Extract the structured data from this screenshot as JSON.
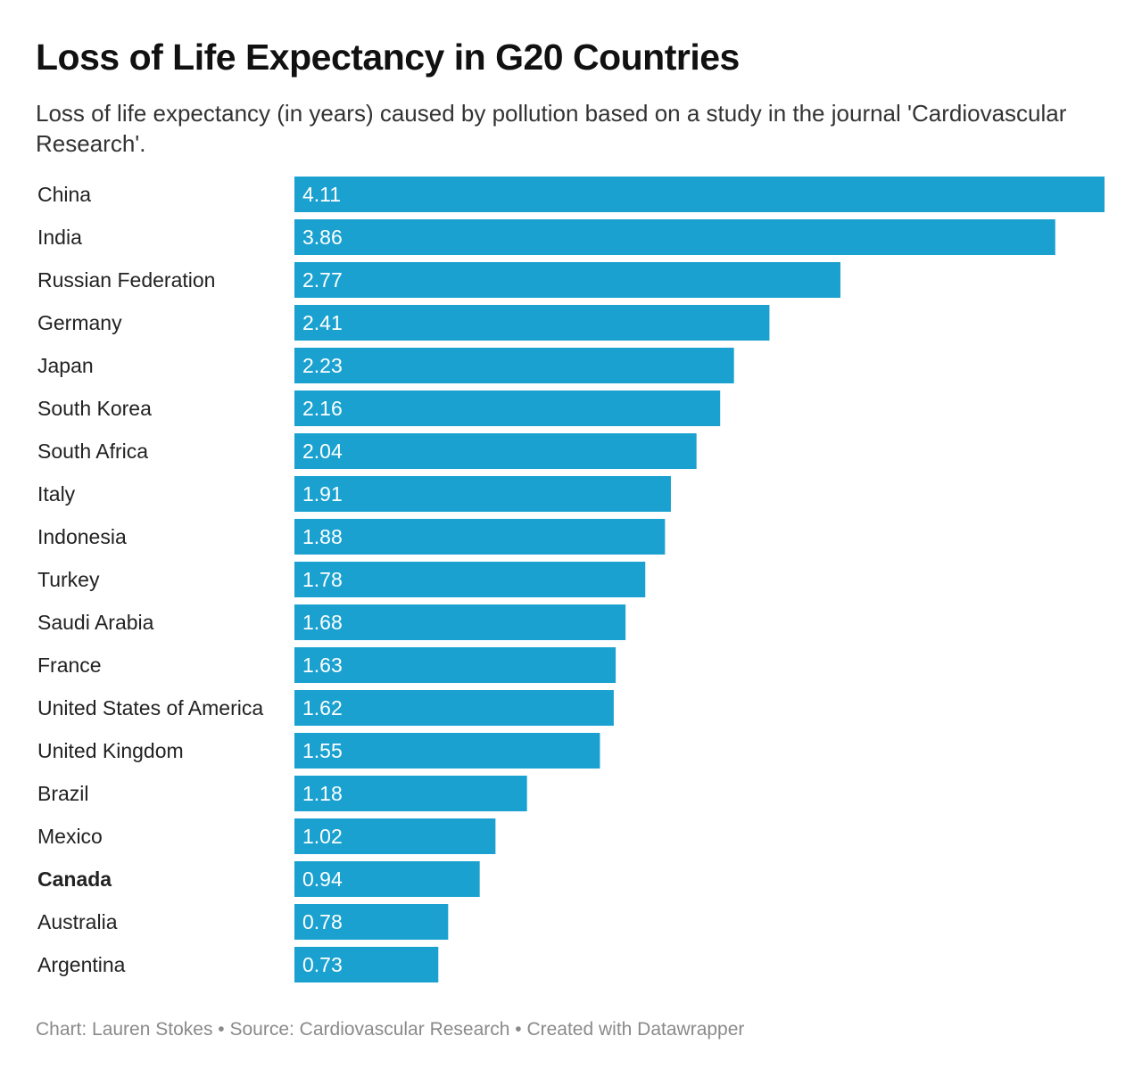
{
  "title": "Loss of Life Expectancy in G20 Countries",
  "subtitle": "Loss of life expectancy (in years) caused by pollution based on a study in the journal 'Cardiovascular Research'.",
  "footer": "Chart: Lauren Stokes • Source: Cardiovascular Research • Created with Datawrapper",
  "colors": {
    "bar": "#1aa1d0",
    "value_text": "#ffffff",
    "label_text": "#222222"
  },
  "chart_data": {
    "type": "bar",
    "orientation": "horizontal",
    "categories": [
      "China",
      "India",
      "Russian Federation",
      "Germany",
      "Japan",
      "South Korea",
      "South Africa",
      "Italy",
      "Indonesia",
      "Turkey",
      "Saudi Arabia",
      "France",
      "United States of America",
      "United Kingdom",
      "Brazil",
      "Mexico",
      "Canada",
      "Australia",
      "Argentina"
    ],
    "values": [
      4.11,
      3.86,
      2.77,
      2.41,
      2.23,
      2.16,
      2.04,
      1.91,
      1.88,
      1.78,
      1.68,
      1.63,
      1.62,
      1.55,
      1.18,
      1.02,
      0.94,
      0.78,
      0.73
    ],
    "value_labels": [
      "4.11",
      "3.86",
      "2.77",
      "2.41",
      "2.23",
      "2.16",
      "2.04",
      "1.91",
      "1.88",
      "1.78",
      "1.68",
      "1.63",
      "1.62",
      "1.55",
      "1.18",
      "1.02",
      "0.94",
      "0.78",
      "0.73"
    ],
    "highlighted": [
      "Canada"
    ],
    "xlim": [
      0,
      4.11
    ],
    "grid": false,
    "legend": "none",
    "xlabel": "",
    "ylabel": ""
  }
}
